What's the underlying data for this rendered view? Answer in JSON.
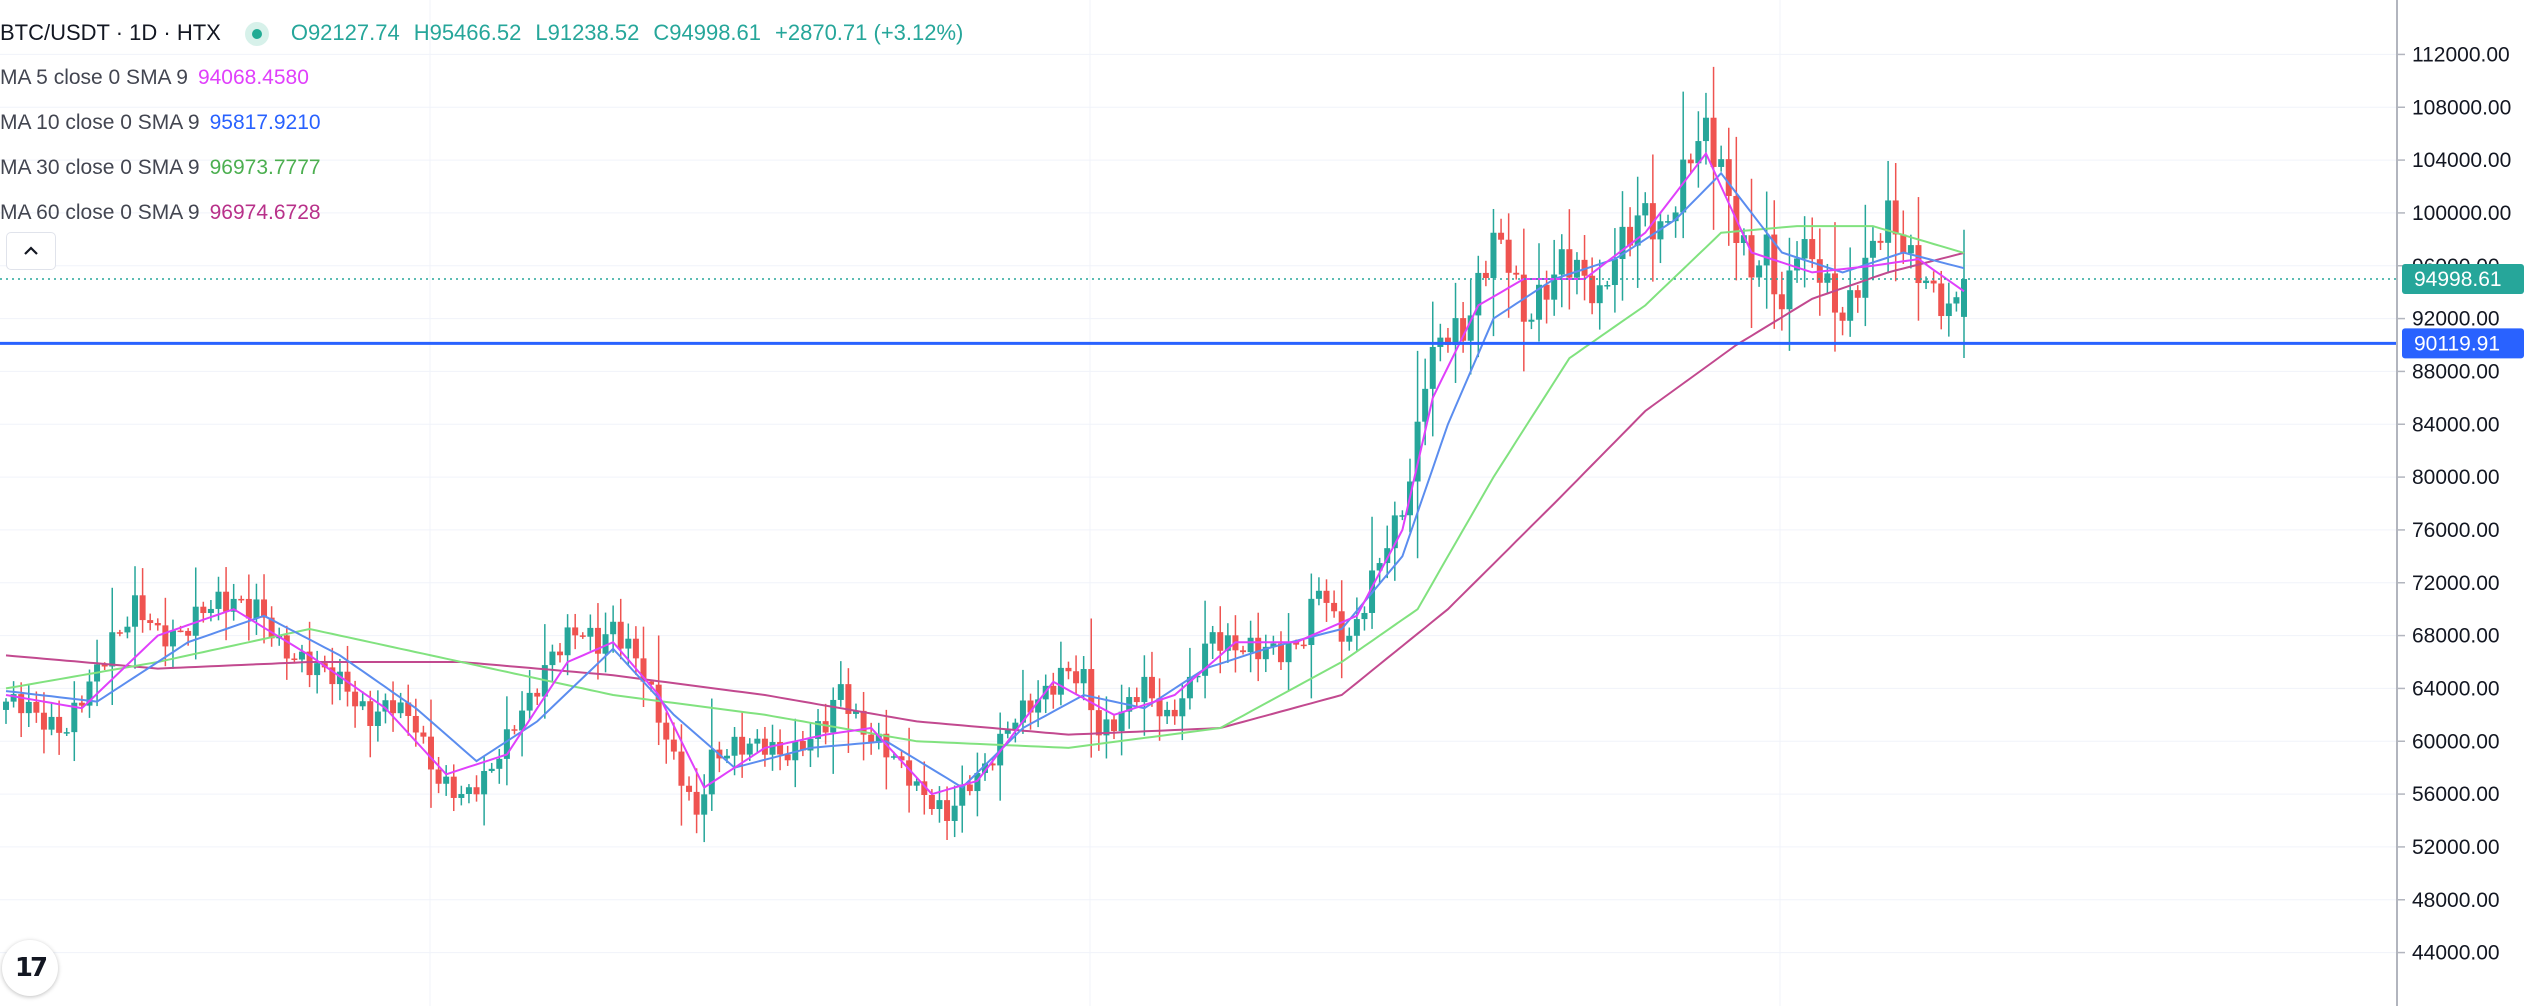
{
  "header": {
    "symbol": "BTC/USDT · 1D · HTX",
    "open": "O92127.74",
    "high": "H95466.52",
    "low": "L91238.52",
    "close": "C94998.61",
    "change": "+2870.71 (+3.12%)"
  },
  "indicators": [
    {
      "label": "MA 5 close 0 SMA 9",
      "value": "94068.4580",
      "color": "#e040fb"
    },
    {
      "label": "MA 10 close 0 SMA 9",
      "value": "95817.9210",
      "color": "#2962ff"
    },
    {
      "label": "MA 30 close 0 SMA 9",
      "value": "96973.7777",
      "color": "#4caf50"
    },
    {
      "label": "MA 60 close 0 SMA 9",
      "value": "96974.6728",
      "color": "#b8318a"
    }
  ],
  "price_tags": {
    "last_price": "94998.61",
    "horizontal_line": "90119.91"
  },
  "colors": {
    "up": "#26a69a",
    "down": "#ef5350",
    "last_price_bg": "#26a69a",
    "hline": "#2962ff",
    "ma5": "#e040fb",
    "ma10": "#5b8def",
    "ma30": "#81e27f",
    "ma60": "#c2498f"
  },
  "logo_text": "17",
  "chart_data": {
    "type": "candlestick",
    "ylim": [
      42000,
      114000
    ],
    "yticks": [
      "112000.00",
      "108000.00",
      "104000.00",
      "100000.00",
      "96000.00",
      "92000.00",
      "88000.00",
      "84000.00",
      "80000.00",
      "76000.00",
      "72000.00",
      "68000.00",
      "64000.00",
      "60000.00",
      "56000.00",
      "52000.00",
      "48000.00",
      "44000.00"
    ],
    "last_price": 94998.61,
    "horizontal_line": 90119.91,
    "close_path": [
      [
        0,
        63000
      ],
      [
        4,
        62000
      ],
      [
        8,
        61000
      ],
      [
        11,
        64000
      ],
      [
        14,
        68000
      ],
      [
        17,
        70000
      ],
      [
        20,
        68000
      ],
      [
        23,
        68500
      ],
      [
        27,
        70000
      ],
      [
        30,
        71000
      ],
      [
        33,
        70000
      ],
      [
        36,
        67000
      ],
      [
        39,
        66500
      ],
      [
        42,
        65000
      ],
      [
        45,
        64000
      ],
      [
        48,
        62000
      ],
      [
        51,
        62500
      ],
      [
        54,
        61500
      ],
      [
        57,
        57000
      ],
      [
        60,
        55500
      ],
      [
        63,
        57500
      ],
      [
        66,
        60000
      ],
      [
        69,
        63000
      ],
      [
        72,
        67000
      ],
      [
        75,
        68000
      ],
      [
        78,
        67500
      ],
      [
        80,
        69000
      ],
      [
        83,
        66000
      ],
      [
        86,
        62000
      ],
      [
        89,
        57500
      ],
      [
        91,
        54000
      ],
      [
        93,
        58500
      ],
      [
        96,
        60000
      ],
      [
        99,
        59500
      ],
      [
        102,
        59000
      ],
      [
        105,
        60000
      ],
      [
        108,
        61000
      ],
      [
        110,
        64000
      ],
      [
        113,
        61000
      ],
      [
        116,
        59000
      ],
      [
        119,
        57500
      ],
      [
        122,
        55500
      ],
      [
        124,
        54000
      ],
      [
        127,
        57000
      ],
      [
        130,
        59000
      ],
      [
        133,
        61500
      ],
      [
        136,
        63500
      ],
      [
        139,
        65000
      ],
      [
        142,
        64500
      ],
      [
        144,
        61000
      ],
      [
        147,
        62000
      ],
      [
        150,
        64000
      ],
      [
        153,
        62000
      ],
      [
        156,
        64000
      ],
      [
        159,
        68000
      ],
      [
        162,
        67500
      ],
      [
        165,
        66500
      ],
      [
        168,
        67000
      ],
      [
        171,
        68000
      ],
      [
        173,
        71500
      ],
      [
        175,
        69000
      ],
      [
        177,
        68000
      ],
      [
        180,
        72000
      ],
      [
        183,
        76000
      ],
      [
        185,
        80000
      ],
      [
        187,
        88000
      ],
      [
        189,
        90000
      ],
      [
        192,
        91000
      ],
      [
        194,
        95000
      ],
      [
        196,
        98000
      ],
      [
        198,
        96000
      ],
      [
        200,
        92000
      ],
      [
        202,
        94000
      ],
      [
        205,
        96000
      ],
      [
        208,
        95000
      ],
      [
        210,
        94000
      ],
      [
        212,
        97000
      ],
      [
        214,
        98000
      ],
      [
        216,
        100000
      ],
      [
        218,
        99000
      ],
      [
        220,
        101000
      ],
      [
        222,
        104000
      ],
      [
        224,
        106000
      ],
      [
        226,
        104000
      ],
      [
        228,
        99000
      ],
      [
        230,
        95000
      ],
      [
        232,
        97000
      ],
      [
        234,
        93000
      ],
      [
        236,
        98000
      ],
      [
        238,
        96000
      ],
      [
        240,
        94000
      ],
      [
        242,
        92500
      ],
      [
        244,
        95000
      ],
      [
        246,
        97000
      ],
      [
        248,
        99500
      ],
      [
        250,
        98000
      ],
      [
        252,
        96000
      ],
      [
        254,
        93500
      ],
      [
        256,
        92000
      ],
      [
        258,
        95000
      ]
    ],
    "ma5_path": [
      [
        0,
        63500
      ],
      [
        10,
        62500
      ],
      [
        20,
        68000
      ],
      [
        30,
        70000
      ],
      [
        40,
        66500
      ],
      [
        50,
        62500
      ],
      [
        58,
        57500
      ],
      [
        66,
        59000
      ],
      [
        74,
        66000
      ],
      [
        80,
        67500
      ],
      [
        86,
        63500
      ],
      [
        92,
        56500
      ],
      [
        100,
        59500
      ],
      [
        108,
        60500
      ],
      [
        114,
        61000
      ],
      [
        122,
        56000
      ],
      [
        128,
        57000
      ],
      [
        138,
        64500
      ],
      [
        146,
        62000
      ],
      [
        154,
        63500
      ],
      [
        162,
        67500
      ],
      [
        170,
        67500
      ],
      [
        178,
        69500
      ],
      [
        184,
        76000
      ],
      [
        188,
        86000
      ],
      [
        194,
        93000
      ],
      [
        200,
        95000
      ],
      [
        208,
        95000
      ],
      [
        216,
        98500
      ],
      [
        224,
        104500
      ],
      [
        230,
        97000
      ],
      [
        238,
        95500
      ],
      [
        246,
        96000
      ],
      [
        252,
        96500
      ],
      [
        258,
        94068
      ]
    ],
    "ma10_path": [
      [
        0,
        63800
      ],
      [
        12,
        63000
      ],
      [
        24,
        67500
      ],
      [
        34,
        69500
      ],
      [
        44,
        66500
      ],
      [
        54,
        62500
      ],
      [
        62,
        58500
      ],
      [
        70,
        61500
      ],
      [
        80,
        67000
      ],
      [
        88,
        62000
      ],
      [
        96,
        58000
      ],
      [
        106,
        59500
      ],
      [
        116,
        60000
      ],
      [
        126,
        56500
      ],
      [
        134,
        61000
      ],
      [
        142,
        63500
      ],
      [
        150,
        62500
      ],
      [
        158,
        65500
      ],
      [
        166,
        67000
      ],
      [
        176,
        68500
      ],
      [
        184,
        74000
      ],
      [
        190,
        84000
      ],
      [
        196,
        92000
      ],
      [
        204,
        95000
      ],
      [
        212,
        96500
      ],
      [
        220,
        99500
      ],
      [
        226,
        103000
      ],
      [
        234,
        97000
      ],
      [
        242,
        95500
      ],
      [
        250,
        97000
      ],
      [
        258,
        95818
      ]
    ],
    "ma30_path": [
      [
        0,
        64000
      ],
      [
        20,
        66000
      ],
      [
        40,
        68500
      ],
      [
        60,
        66000
      ],
      [
        80,
        63500
      ],
      [
        100,
        62000
      ],
      [
        120,
        60000
      ],
      [
        140,
        59500
      ],
      [
        160,
        61000
      ],
      [
        176,
        66000
      ],
      [
        186,
        70000
      ],
      [
        196,
        80000
      ],
      [
        206,
        89000
      ],
      [
        216,
        93000
      ],
      [
        226,
        98500
      ],
      [
        236,
        99000
      ],
      [
        246,
        99000
      ],
      [
        258,
        96974
      ]
    ],
    "ma60_path": [
      [
        0,
        66500
      ],
      [
        20,
        65500
      ],
      [
        40,
        66000
      ],
      [
        60,
        66000
      ],
      [
        80,
        65000
      ],
      [
        100,
        63500
      ],
      [
        120,
        61500
      ],
      [
        140,
        60500
      ],
      [
        160,
        61000
      ],
      [
        176,
        63500
      ],
      [
        190,
        70000
      ],
      [
        204,
        78000
      ],
      [
        216,
        85000
      ],
      [
        228,
        90000
      ],
      [
        238,
        93500
      ],
      [
        248,
        95500
      ],
      [
        258,
        96975
      ]
    ]
  }
}
